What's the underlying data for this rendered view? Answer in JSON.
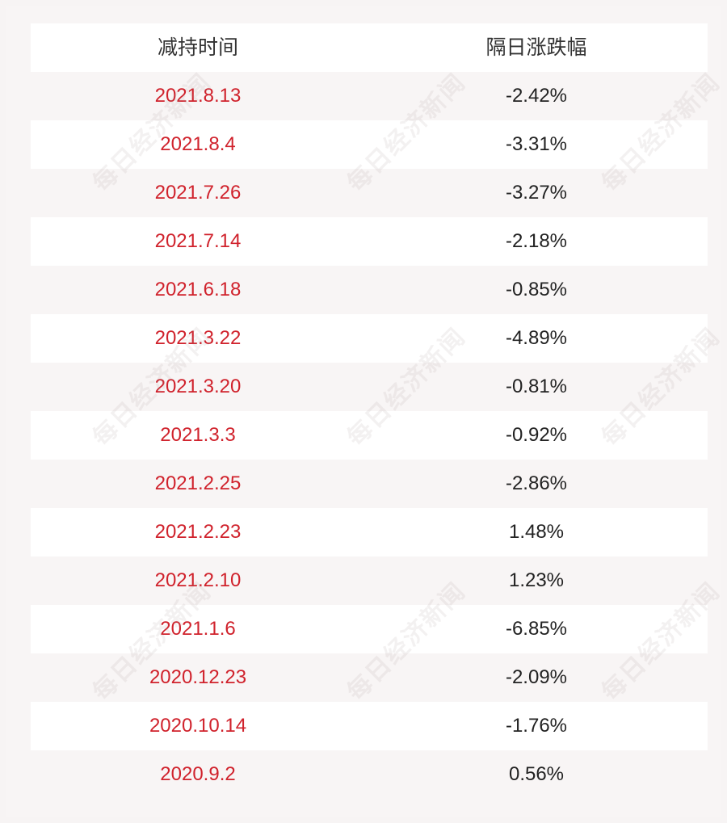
{
  "table": {
    "headers": [
      "减持时间",
      "隔日涨跌幅"
    ],
    "rows": [
      {
        "date": "2021.8.13",
        "change": "-2.42%"
      },
      {
        "date": "2021.8.4",
        "change": "-3.31%"
      },
      {
        "date": "2021.7.26",
        "change": "-3.27%"
      },
      {
        "date": "2021.7.14",
        "change": "-2.18%"
      },
      {
        "date": "2021.6.18",
        "change": "-0.85%"
      },
      {
        "date": "2021.3.22",
        "change": "-4.89%"
      },
      {
        "date": "2021.3.20",
        "change": "-0.81%"
      },
      {
        "date": "2021.3.3",
        "change": "-0.92%"
      },
      {
        "date": "2021.2.25",
        "change": "-2.86%"
      },
      {
        "date": "2021.2.23",
        "change": "1.48%"
      },
      {
        "date": "2021.2.10",
        "change": "1.23%"
      },
      {
        "date": "2021.1.6",
        "change": "-6.85%"
      },
      {
        "date": "2020.12.23",
        "change": "-2.09%"
      },
      {
        "date": "2020.10.14",
        "change": "-1.76%"
      },
      {
        "date": "2020.9.2",
        "change": "0.56%"
      }
    ]
  },
  "watermark": {
    "text": "每日经济新闻"
  },
  "colors": {
    "date_text": "#d0222c",
    "value_text": "#222222",
    "stripe": "#ffffff",
    "background": "#f8f5f5"
  }
}
